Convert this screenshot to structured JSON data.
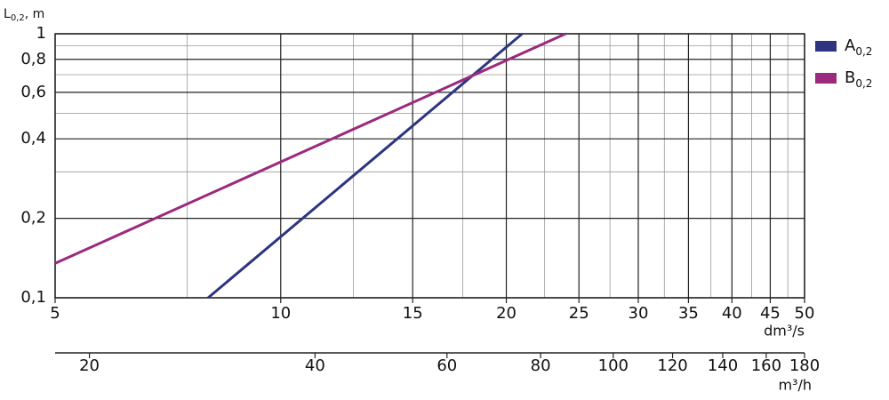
{
  "chart_data": {
    "type": "line",
    "ylabel": {
      "text": "L",
      "subscript": "0,2",
      "suffix": ", m"
    },
    "xlabel": "dm³/s",
    "x2label": "m³/h",
    "xscale": "log",
    "yscale": "log",
    "x2scale": "log",
    "xlim": [
      5,
      50
    ],
    "ylim": [
      0.1,
      1
    ],
    "x2lim": [
      18,
      180
    ],
    "xticks": [
      5,
      10,
      15,
      20,
      25,
      30,
      35,
      40,
      45,
      50
    ],
    "xminor": [
      7.5,
      12.5,
      17.5,
      22.5,
      27.5,
      32.5,
      37.5,
      42.5,
      47.5
    ],
    "yticks": [
      {
        "value": 0.1,
        "label": "0,1"
      },
      {
        "value": 0.2,
        "label": "0,2"
      },
      {
        "value": 0.4,
        "label": "0,4"
      },
      {
        "value": 0.6,
        "label": "0,6"
      },
      {
        "value": 0.8,
        "label": "0,8"
      },
      1
    ],
    "yminor": [
      0.3,
      0.5,
      0.7,
      0.9
    ],
    "x2ticks": [
      20,
      40,
      60,
      80,
      100,
      120,
      140,
      160,
      180
    ],
    "grid": true,
    "legend": "right",
    "series": [
      {
        "name": "A",
        "subscript": "0,2",
        "color": "#2e3480",
        "x": [
          8,
          21
        ],
        "values": [
          0.1,
          1
        ]
      },
      {
        "name": "B",
        "subscript": "0,2",
        "color": "#9b2a7f",
        "x": [
          5,
          24
        ],
        "values": [
          0.135,
          1
        ]
      }
    ]
  }
}
